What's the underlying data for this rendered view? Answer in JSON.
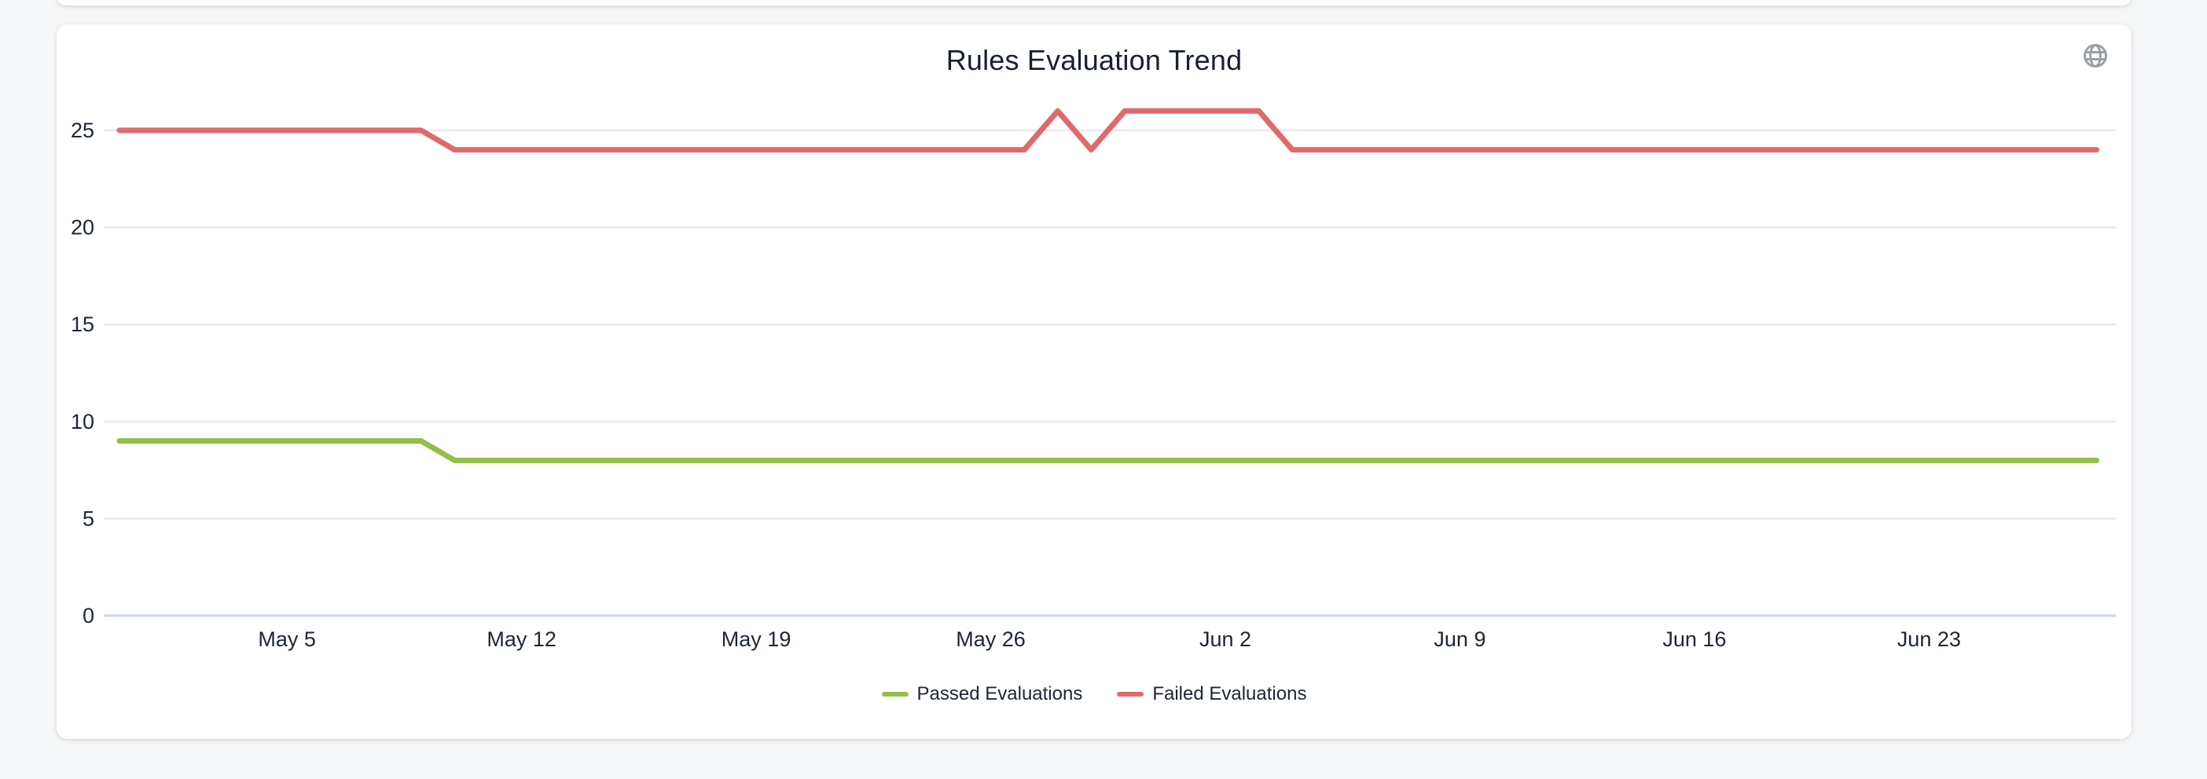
{
  "page": {
    "background": "#f4f6f8"
  },
  "card": {
    "background": "#ffffff"
  },
  "toolbar": {
    "globe_icon_color": "#9aa0a8"
  },
  "chart_data": {
    "type": "line",
    "title": "Rules Evaluation Trend",
    "title_color": "#18202f",
    "x_unit": "day",
    "x_start": "Apr 30",
    "x_end": "Jun 28",
    "x_tick_labels": [
      "May 5",
      "May 12",
      "May 19",
      "May 26",
      "Jun 2",
      "Jun 9",
      "Jun 16",
      "Jun 23"
    ],
    "x_tick_day_index": [
      5,
      12,
      19,
      26,
      33,
      40,
      47,
      54
    ],
    "y_ticks": [
      0,
      5,
      10,
      15,
      20,
      25
    ],
    "ylim": [
      0,
      27
    ],
    "grid": true,
    "grid_color": "#e8e8e8",
    "axis_line_color": "#ccd5e2",
    "tick_label_color": "#1c2634",
    "legend_position": "bottom-center",
    "series": [
      {
        "name": "Passed Evaluations",
        "color": "#92c047",
        "values": [
          9,
          9,
          9,
          9,
          9,
          9,
          9,
          9,
          9,
          9,
          8,
          8,
          8,
          8,
          8,
          8,
          8,
          8,
          8,
          8,
          8,
          8,
          8,
          8,
          8,
          8,
          8,
          8,
          8,
          8,
          8,
          8,
          8,
          8,
          8,
          8,
          8,
          8,
          8,
          8,
          8,
          8,
          8,
          8,
          8,
          8,
          8,
          8,
          8,
          8,
          8,
          8,
          8,
          8,
          8,
          8,
          8,
          8,
          8,
          8
        ]
      },
      {
        "name": "Failed Evaluations",
        "color": "#df6a6a",
        "values": [
          25,
          25,
          25,
          25,
          25,
          25,
          25,
          25,
          25,
          25,
          24,
          24,
          24,
          24,
          24,
          24,
          24,
          24,
          24,
          24,
          24,
          24,
          24,
          24,
          24,
          24,
          24,
          24,
          26,
          24,
          26,
          26,
          26,
          26,
          26,
          24,
          24,
          24,
          24,
          24,
          24,
          24,
          24,
          24,
          24,
          24,
          24,
          24,
          24,
          24,
          24,
          24,
          24,
          24,
          24,
          24,
          24,
          24,
          24,
          24
        ]
      }
    ]
  }
}
